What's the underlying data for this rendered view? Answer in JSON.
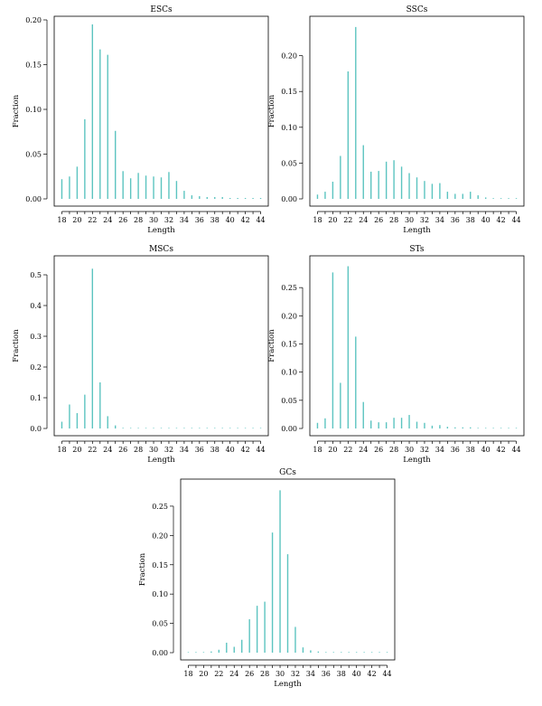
{
  "colors": {
    "bar": "#5cc4c0"
  },
  "chart_data": [
    {
      "type": "bar",
      "title": "ESCs",
      "xlabel": "Length",
      "ylabel": "Fraction",
      "x": [
        18,
        19,
        20,
        21,
        22,
        23,
        24,
        25,
        26,
        27,
        28,
        29,
        30,
        31,
        32,
        33,
        34,
        35,
        36,
        37,
        38,
        39,
        40,
        41,
        42,
        43,
        44
      ],
      "values": [
        0.022,
        0.025,
        0.036,
        0.089,
        0.195,
        0.167,
        0.161,
        0.076,
        0.031,
        0.023,
        0.029,
        0.026,
        0.025,
        0.024,
        0.03,
        0.02,
        0.009,
        0.004,
        0.003,
        0.002,
        0.002,
        0.002,
        0.001,
        0.001,
        0.001,
        0.001,
        0.001
      ],
      "ylim": [
        0,
        0.2
      ],
      "yticks": [
        "0.00",
        "0.05",
        "0.10",
        "0.15",
        "0.20"
      ],
      "xticks": [
        "18",
        "20",
        "22",
        "24",
        "26",
        "28",
        "30",
        "32",
        "34",
        "36",
        "38",
        "40",
        "42",
        "44"
      ]
    },
    {
      "type": "bar",
      "title": "SSCs",
      "xlabel": "Length",
      "ylabel": "Fraction",
      "x": [
        18,
        19,
        20,
        21,
        22,
        23,
        24,
        25,
        26,
        27,
        28,
        29,
        30,
        31,
        32,
        33,
        34,
        35,
        36,
        37,
        38,
        39,
        40,
        41,
        42,
        43,
        44
      ],
      "values": [
        0.006,
        0.01,
        0.024,
        0.06,
        0.178,
        0.24,
        0.075,
        0.038,
        0.039,
        0.052,
        0.054,
        0.045,
        0.036,
        0.03,
        0.025,
        0.021,
        0.022,
        0.01,
        0.007,
        0.007,
        0.01,
        0.005,
        0.002,
        0.001,
        0.001,
        0.001,
        0.001
      ],
      "ylim": [
        0,
        0.25
      ],
      "yticks": [
        "0.00",
        "0.05",
        "0.10",
        "0.15",
        "0.20"
      ],
      "xticks": [
        "18",
        "20",
        "22",
        "24",
        "26",
        "28",
        "30",
        "32",
        "34",
        "36",
        "38",
        "40",
        "42",
        "44"
      ]
    },
    {
      "type": "bar",
      "title": "MSCs",
      "xlabel": "Length",
      "ylabel": "Fraction",
      "x": [
        18,
        19,
        20,
        21,
        22,
        23,
        24,
        25,
        26,
        27,
        28,
        29,
        30,
        31,
        32,
        33,
        34,
        35,
        36,
        37,
        38,
        39,
        40,
        41,
        42,
        43,
        44
      ],
      "values": [
        0.022,
        0.078,
        0.05,
        0.11,
        0.52,
        0.15,
        0.04,
        0.01,
        0.002,
        0.001,
        0.001,
        0.001,
        0.001,
        0.001,
        0.001,
        0.001,
        0.001,
        0.001,
        0.001,
        0.001,
        0.001,
        0.001,
        0.001,
        0.001,
        0.001,
        0.001,
        0.001
      ],
      "ylim": [
        0,
        0.55
      ],
      "yticks": [
        "0.0",
        "0.1",
        "0.2",
        "0.3",
        "0.4",
        "0.5"
      ],
      "xticks": [
        "18",
        "20",
        "22",
        "24",
        "26",
        "28",
        "30",
        "32",
        "34",
        "36",
        "38",
        "40",
        "42",
        "44"
      ]
    },
    {
      "type": "bar",
      "title": "STs",
      "xlabel": "Length",
      "ylabel": "Fraction",
      "x": [
        18,
        19,
        20,
        21,
        22,
        23,
        24,
        25,
        26,
        27,
        28,
        29,
        30,
        31,
        32,
        33,
        34,
        35,
        36,
        37,
        38,
        39,
        40,
        41,
        42,
        43,
        44
      ],
      "values": [
        0.01,
        0.018,
        0.277,
        0.081,
        0.288,
        0.163,
        0.047,
        0.014,
        0.011,
        0.011,
        0.019,
        0.019,
        0.024,
        0.012,
        0.01,
        0.005,
        0.006,
        0.003,
        0.002,
        0.002,
        0.002,
        0.001,
        0.001,
        0.001,
        0.001,
        0.001,
        0.001
      ],
      "ylim": [
        0,
        0.3
      ],
      "yticks": [
        "0.00",
        "0.05",
        "0.10",
        "0.15",
        "0.20",
        "0.25"
      ],
      "xticks": [
        "18",
        "20",
        "22",
        "24",
        "26",
        "28",
        "30",
        "32",
        "34",
        "36",
        "38",
        "40",
        "42",
        "44"
      ]
    },
    {
      "type": "bar",
      "title": "GCs",
      "xlabel": "Length",
      "ylabel": "Fraction",
      "x": [
        18,
        19,
        20,
        21,
        22,
        23,
        24,
        25,
        26,
        27,
        28,
        29,
        30,
        31,
        32,
        33,
        34,
        35,
        36,
        37,
        38,
        39,
        40,
        41,
        42,
        43,
        44
      ],
      "values": [
        0.0,
        0.001,
        0.001,
        0.002,
        0.005,
        0.017,
        0.01,
        0.022,
        0.057,
        0.08,
        0.087,
        0.205,
        0.277,
        0.168,
        0.044,
        0.009,
        0.004,
        0.002,
        0.001,
        0.001,
        0.001,
        0.001,
        0.001,
        0.001,
        0.001,
        0.001,
        0.001
      ],
      "ylim": [
        0,
        0.29
      ],
      "yticks": [
        "0.00",
        "0.05",
        "0.10",
        "0.15",
        "0.20",
        "0.25"
      ],
      "xticks": [
        "18",
        "20",
        "22",
        "24",
        "26",
        "28",
        "30",
        "32",
        "34",
        "36",
        "38",
        "40",
        "42",
        "44"
      ]
    }
  ]
}
